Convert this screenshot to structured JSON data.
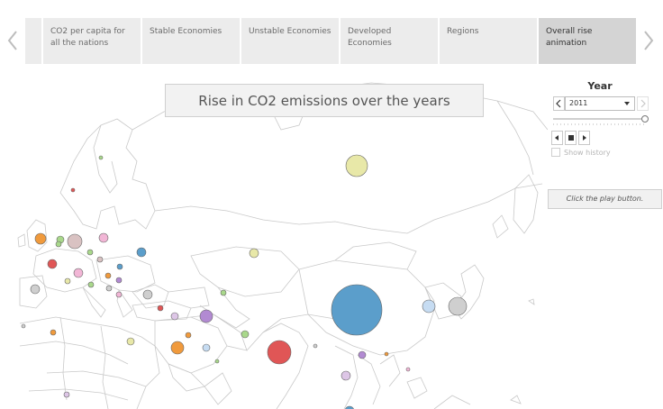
{
  "navigation": {
    "prev_icon": "chevron-left-icon",
    "next_icon": "chevron-right-icon"
  },
  "tabs": [
    {
      "label": "CO2 per capita for all the nations",
      "active": false
    },
    {
      "label": "Stable Economies",
      "active": false
    },
    {
      "label": "Unstable Economies",
      "active": false
    },
    {
      "label": "Developed Economies",
      "active": false
    },
    {
      "label": "Regions",
      "active": false
    },
    {
      "label": "Overall rise animation",
      "active": true
    }
  ],
  "map": {
    "title": "Rise in CO2 emissions over the years"
  },
  "controls": {
    "year_label": "Year",
    "selected_year": "2011",
    "prev_icon": "chevron-left-icon",
    "next_icon": "chevron-right-icon",
    "step_back_icon": "step-back-icon",
    "stop_icon": "stop-icon",
    "play_icon": "play-icon",
    "show_history_label": "Show history",
    "show_history_checked": false
  },
  "hint": {
    "text": "Click the play button."
  },
  "colors": {
    "blue": "#5b9ecb",
    "red": "#e05656",
    "orange": "#f09a3c",
    "yellow_green": "#e8e8a8",
    "purple": "#b28ad2",
    "gray": "#cfcfcf",
    "light_blue": "#c6dcf2",
    "pink": "#f2b6d6",
    "green": "#a9d88b",
    "mauve": "#d9c2c2",
    "lavender": "#ddc6e6"
  }
}
